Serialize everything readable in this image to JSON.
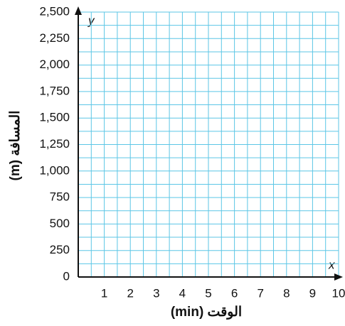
{
  "chart_data": {
    "type": "line",
    "x_label": "الوقت (min)",
    "y_label": "المسافة (m)",
    "x_axis_letter": "x",
    "y_axis_letter": "y",
    "xlim": [
      0,
      10
    ],
    "xticks": [
      1,
      2,
      3,
      4,
      5,
      6,
      7,
      8,
      9,
      10
    ],
    "ylim": [
      0,
      2500
    ],
    "yticks": [
      0,
      250,
      500,
      750,
      {
        "value": 1000,
        "label": "1,000"
      },
      {
        "value": 1250,
        "label": "1,250"
      },
      {
        "value": 1500,
        "label": "1,500"
      },
      {
        "value": 1750,
        "label": "1,750"
      },
      {
        "value": 2000,
        "label": "2,000"
      },
      {
        "value": 2250,
        "label": "2,250"
      },
      {
        "value": 2500,
        "label": "2,500"
      }
    ],
    "grid": true,
    "grid_color": "#5cc6e6",
    "series": []
  }
}
